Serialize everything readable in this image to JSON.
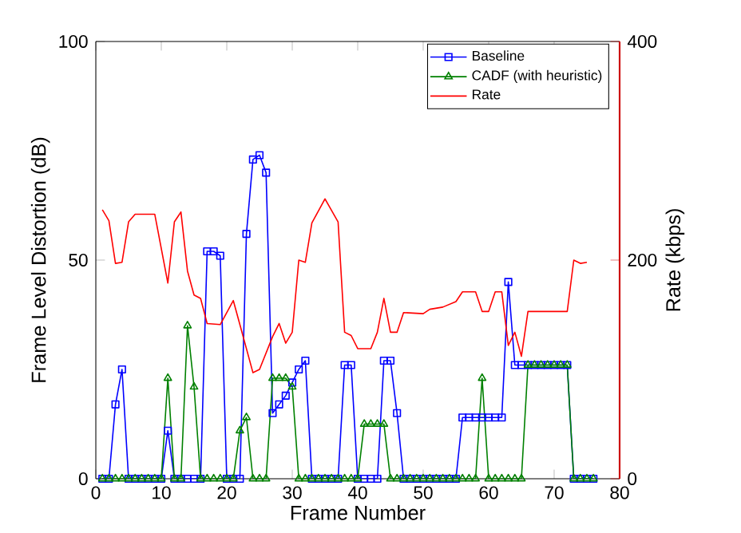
{
  "chart_data": {
    "type": "line",
    "xlabel": "Frame Number",
    "ylabel": "Frame Level Distortion (dB)",
    "y2label": "Rate (kbps)",
    "xlim": [
      0,
      80
    ],
    "xticks": [
      0,
      10,
      20,
      30,
      40,
      50,
      60,
      70,
      80
    ],
    "ylim": [
      0,
      100
    ],
    "yticks": [
      0,
      50,
      100
    ],
    "y2lim": [
      0,
      400
    ],
    "y2ticks": [
      0,
      200,
      400
    ],
    "legend": "top right",
    "grid": false,
    "series": [
      {
        "name": "Baseline",
        "color": "#0000ff",
        "marker": "square",
        "x": [
          1,
          2,
          3,
          4,
          5,
          6,
          7,
          8,
          9,
          10,
          11,
          12,
          13,
          14,
          15,
          16,
          17,
          18,
          19,
          20,
          21,
          22,
          23,
          24,
          25,
          26,
          27,
          28,
          29,
          30,
          31,
          32,
          33,
          34,
          35,
          36,
          37,
          38,
          39,
          40,
          41,
          42,
          43,
          44,
          45,
          46,
          47,
          48,
          49,
          50,
          51,
          52,
          53,
          54,
          55,
          56,
          57,
          58,
          59,
          60,
          61,
          62,
          63,
          64,
          65,
          66,
          67,
          68,
          69,
          70,
          71,
          72,
          73,
          74,
          75,
          76
        ],
        "values": [
          0,
          0,
          17,
          25,
          0,
          0,
          0,
          0,
          0,
          0,
          11,
          0,
          0,
          0,
          0,
          0,
          52,
          52,
          51,
          0,
          0,
          0,
          56,
          73,
          74,
          70,
          15,
          17,
          19,
          22,
          25,
          27,
          0,
          0,
          0,
          0,
          0,
          26,
          26,
          0,
          0,
          0,
          0,
          27,
          27,
          15,
          0,
          0,
          0,
          0,
          0,
          0,
          0,
          0,
          0,
          14,
          14,
          14,
          14,
          14,
          14,
          14,
          45,
          26,
          26,
          26,
          26,
          26,
          26,
          26,
          26,
          26,
          0,
          0,
          0,
          0
        ]
      },
      {
        "name": "CADF (with heuristic)",
        "color": "#008000",
        "marker": "triangle",
        "x": [
          1,
          2,
          3,
          4,
          5,
          6,
          7,
          8,
          9,
          10,
          11,
          12,
          13,
          14,
          15,
          16,
          17,
          18,
          19,
          20,
          21,
          22,
          23,
          24,
          25,
          26,
          27,
          28,
          29,
          30,
          31,
          32,
          33,
          34,
          35,
          36,
          37,
          38,
          39,
          40,
          41,
          42,
          43,
          44,
          45,
          46,
          47,
          48,
          49,
          50,
          51,
          52,
          53,
          54,
          55,
          56,
          57,
          58,
          59,
          60,
          61,
          62,
          63,
          64,
          65,
          66,
          67,
          68,
          69,
          70,
          71,
          72,
          73,
          74,
          75,
          76
        ],
        "values": [
          0,
          0,
          0,
          0,
          0,
          0,
          0,
          0,
          0,
          0,
          23,
          0,
          0,
          35,
          21,
          0,
          0,
          0,
          0,
          0,
          0,
          11,
          14,
          0,
          0,
          0,
          23,
          23,
          23,
          21,
          0,
          0,
          0,
          0,
          0,
          0,
          0,
          0,
          0,
          0,
          12.5,
          12.5,
          12.5,
          12.5,
          0,
          0,
          0,
          0,
          0,
          0,
          0,
          0,
          0,
          0,
          0,
          0,
          0,
          0,
          23,
          0,
          0,
          0,
          0,
          0,
          0,
          26,
          26,
          26,
          26,
          26,
          26,
          26,
          0,
          0,
          0,
          0
        ]
      },
      {
        "name": "Rate",
        "color": "#ff0000",
        "marker": "none",
        "axis": "y2",
        "x": [
          1,
          2,
          3,
          4,
          5,
          6,
          9,
          11,
          12,
          13,
          14,
          15,
          16,
          17,
          19,
          21,
          22,
          24,
          25,
          27,
          28,
          29,
          30,
          31,
          32,
          33,
          35,
          37,
          38,
          39,
          40,
          42,
          43,
          44,
          45,
          46,
          47,
          50,
          51,
          53,
          55,
          56,
          58,
          59,
          60,
          61,
          62,
          63,
          64,
          65,
          66,
          72,
          73,
          74,
          75
        ],
        "values": [
          246,
          236,
          197,
          198,
          235,
          242,
          242,
          179,
          235,
          244,
          190,
          168,
          165,
          142,
          141,
          163,
          141,
          97,
          100,
          130,
          142,
          124,
          134,
          200,
          198,
          234,
          256,
          235,
          134,
          131,
          119,
          119,
          134,
          165,
          134,
          134,
          152,
          151,
          155,
          157,
          162,
          171,
          171,
          153,
          153,
          171,
          171,
          122,
          134,
          112,
          153,
          153,
          200,
          197,
          198
        ]
      }
    ]
  }
}
